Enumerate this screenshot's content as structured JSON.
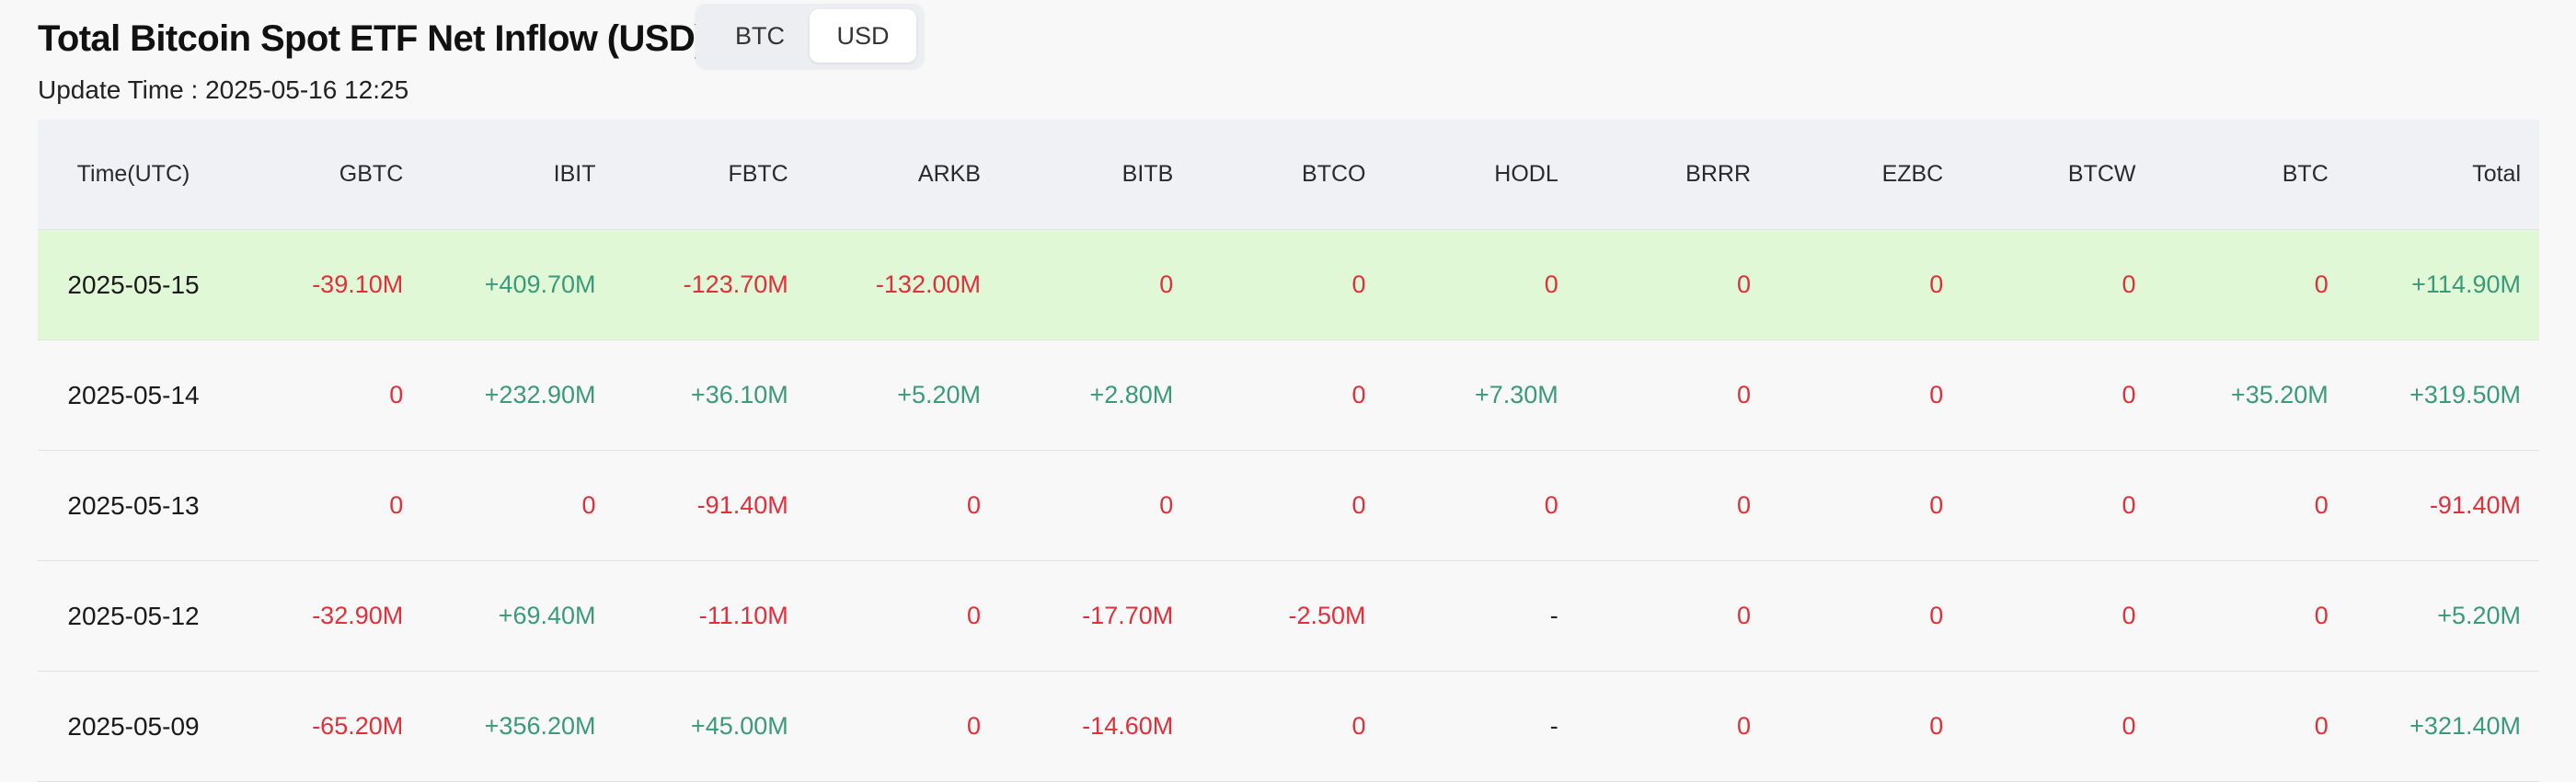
{
  "title": "Total Bitcoin Spot ETF Net Inflow (USD)",
  "toggle": {
    "options": [
      "BTC",
      "USD"
    ],
    "selected": "USD"
  },
  "update_time": "Update Time : 2025-05-16 12:25",
  "colors": {
    "positive": "#3a9a7a",
    "negative": "#e0303a",
    "highlight_row": "#e1f8d7",
    "header_bg": "#f0f1f5"
  },
  "table": {
    "columns": [
      "Time(UTC)",
      "GBTC",
      "IBIT",
      "FBTC",
      "ARKB",
      "BITB",
      "BTCO",
      "HODL",
      "BRRR",
      "EZBC",
      "BTCW",
      "BTC",
      "Total"
    ],
    "rows": [
      {
        "date": "2025-05-15",
        "highlight": true,
        "values": [
          "-39.10M",
          "+409.70M",
          "-123.70M",
          "-132.00M",
          "0",
          "0",
          "0",
          "0",
          "0",
          "0",
          "0",
          "+114.90M"
        ]
      },
      {
        "date": "2025-05-14",
        "highlight": false,
        "values": [
          "0",
          "+232.90M",
          "+36.10M",
          "+5.20M",
          "+2.80M",
          "0",
          "+7.30M",
          "0",
          "0",
          "0",
          "+35.20M",
          "+319.50M"
        ]
      },
      {
        "date": "2025-05-13",
        "highlight": false,
        "values": [
          "0",
          "0",
          "-91.40M",
          "0",
          "0",
          "0",
          "0",
          "0",
          "0",
          "0",
          "0",
          "-91.40M"
        ]
      },
      {
        "date": "2025-05-12",
        "highlight": false,
        "values": [
          "-32.90M",
          "+69.40M",
          "-11.10M",
          "0",
          "-17.70M",
          "-2.50M",
          "-",
          "0",
          "0",
          "0",
          "0",
          "+5.20M"
        ]
      },
      {
        "date": "2025-05-09",
        "highlight": false,
        "values": [
          "-65.20M",
          "+356.20M",
          "+45.00M",
          "0",
          "-14.60M",
          "0",
          "-",
          "0",
          "0",
          "0",
          "0",
          "+321.40M"
        ]
      }
    ]
  }
}
